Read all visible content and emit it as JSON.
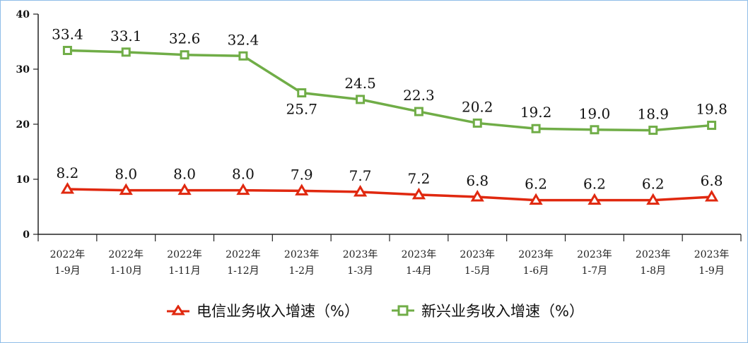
{
  "chart_data": {
    "type": "line",
    "categories": [
      [
        "2022年",
        "1-9月"
      ],
      [
        "2022年",
        "1-10月"
      ],
      [
        "2022年",
        "1-11月"
      ],
      [
        "2022年",
        "1-12月"
      ],
      [
        "2023年",
        "1-2月"
      ],
      [
        "2023年",
        "1-3月"
      ],
      [
        "2023年",
        "1-4月"
      ],
      [
        "2023年",
        "1-5月"
      ],
      [
        "2023年",
        "1-6月"
      ],
      [
        "2023年",
        "1-7月"
      ],
      [
        "2023年",
        "1-8月"
      ],
      [
        "2023年",
        "1-9月"
      ]
    ],
    "ylim": [
      0,
      40
    ],
    "yticks": [
      0,
      10,
      20,
      30,
      40
    ],
    "grid": false,
    "legend_position": "bottom",
    "series": [
      {
        "name": "电信业务收入增速（%）",
        "color": "#e0280f",
        "marker": "triangle",
        "values": [
          8.2,
          8.0,
          8.0,
          8.0,
          7.9,
          7.7,
          7.2,
          6.8,
          6.2,
          6.2,
          6.2,
          6.8
        ],
        "labels": [
          "8.2",
          "8.0",
          "8.0",
          "8.0",
          "7.9",
          "7.7",
          "7.2",
          "6.8",
          "6.2",
          "6.2",
          "6.2",
          "6.8"
        ]
      },
      {
        "name": "新兴业务收入增速（%）",
        "color": "#70ad47",
        "marker": "square",
        "values": [
          33.4,
          33.1,
          32.6,
          32.4,
          25.7,
          24.5,
          22.3,
          20.2,
          19.2,
          19.0,
          18.9,
          19.8
        ],
        "labels": [
          "33.4",
          "33.1",
          "32.6",
          "32.4",
          "25.7",
          "24.5",
          "22.3",
          "20.2",
          "19.2",
          "19.0",
          "18.9",
          "19.8"
        ]
      }
    ]
  }
}
